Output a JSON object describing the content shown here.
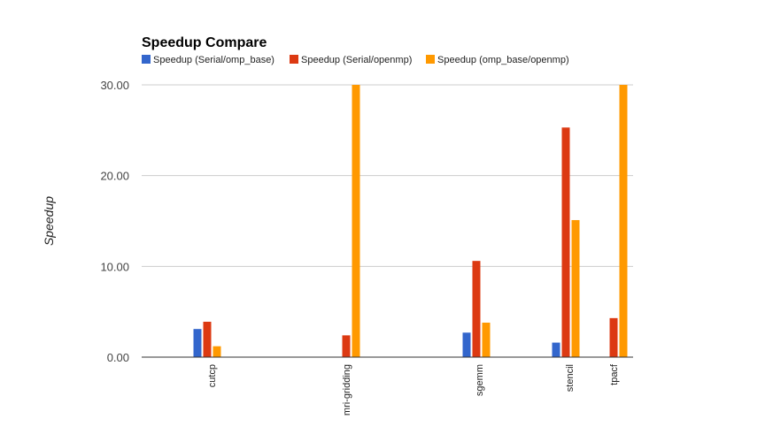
{
  "chart_data": {
    "type": "bar",
    "title": "Speedup Compare",
    "xlabel": "",
    "ylabel": "Speedup",
    "ylim": [
      0,
      30
    ],
    "yticks": [
      "0.00",
      "10.00",
      "20.00",
      "30.00"
    ],
    "yticks_values": [
      0,
      10,
      20,
      30
    ],
    "legend_position": "top-left",
    "grid": true,
    "categories": [
      "cutcp",
      "mri-gridding",
      "sgemm",
      "stencil",
      "tpacf"
    ],
    "series": [
      {
        "name": "Speedup (Serial/omp_base)",
        "color": "#3366cc",
        "values": [
          3.1,
          0,
          2.7,
          1.6,
          0
        ]
      },
      {
        "name": "Speedup (Serial/openmp)",
        "color": "#dc3912",
        "values": [
          3.9,
          2.4,
          10.6,
          25.3,
          4.3
        ]
      },
      {
        "name": "Speedup (omp_base/openmp)",
        "color": "#ff9900",
        "values": [
          1.2,
          30,
          3.8,
          15.1,
          30
        ]
      }
    ]
  }
}
